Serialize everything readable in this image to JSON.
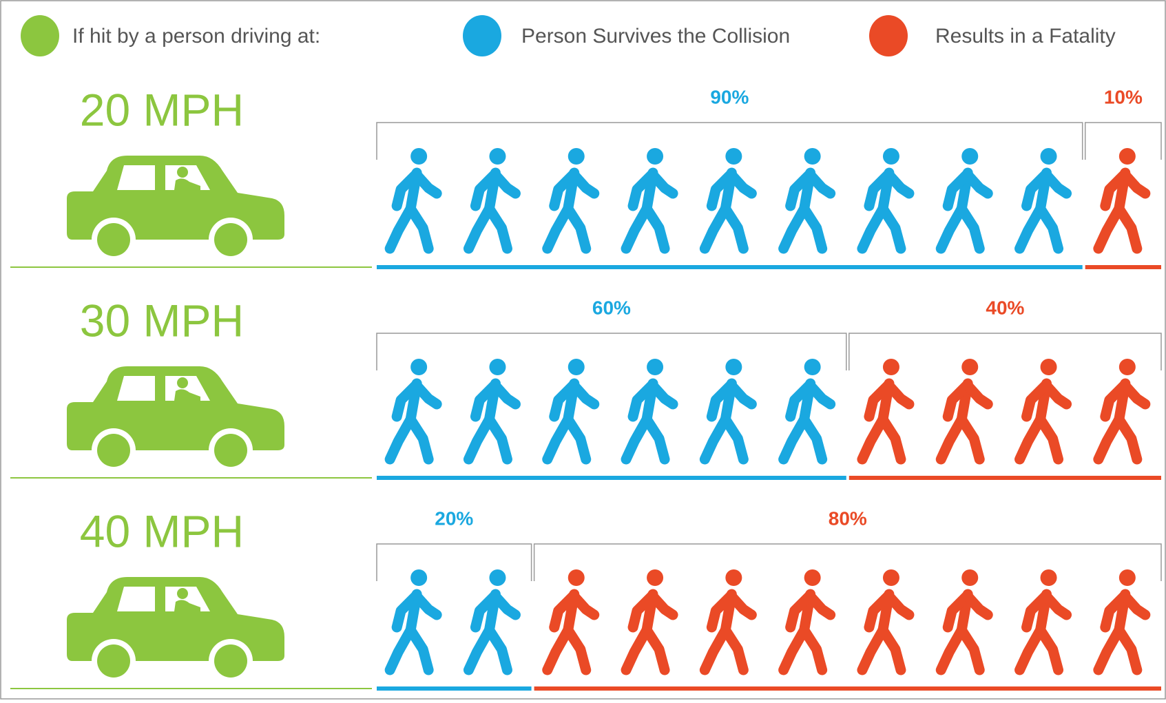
{
  "chart_data": {
    "type": "pictogram",
    "legend_title": "If hit by a person driving at:",
    "category_color": "#8cc63f",
    "categories": [
      "20 MPH",
      "30 MPH",
      "40 MPH"
    ],
    "series": [
      {
        "name": "Person Survives the Collision",
        "color": "#1aa8e0",
        "values": [
          90,
          60,
          20
        ],
        "value_labels": [
          "90%",
          "60%",
          "20%"
        ]
      },
      {
        "name": "Results in a Fatality",
        "color": "#ea4a26",
        "values": [
          10,
          40,
          80
        ],
        "value_labels": [
          "10%",
          "40%",
          "80%"
        ]
      }
    ]
  }
}
